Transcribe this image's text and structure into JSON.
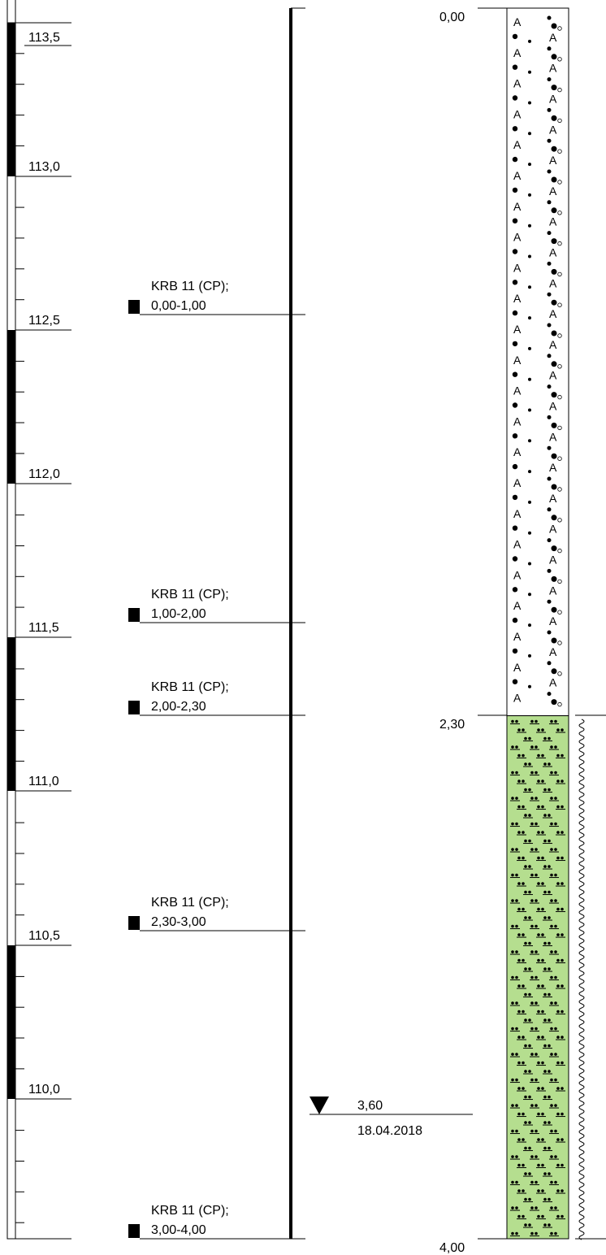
{
  "elevation_scale": {
    "labels": [
      "113,5",
      "113,0",
      "112,5",
      "112,0",
      "111,5",
      "111,0",
      "110,5",
      "110,0"
    ]
  },
  "samples": [
    {
      "name": "KRB 11 (CP);",
      "range": "0,00-1,00"
    },
    {
      "name": "KRB 11 (CP);",
      "range": "1,00-2,00"
    },
    {
      "name": "KRB 11 (CP);",
      "range": "2,00-2,30"
    },
    {
      "name": "KRB 11 (CP);",
      "range": "2,30-3,00"
    },
    {
      "name": "KRB 11 (CP);",
      "range": "3,00-4,00"
    }
  ],
  "groundwater": {
    "depth": "3,60",
    "date": "18.04.2018"
  },
  "layers": [
    {
      "top_label": "0,00",
      "top_m": 0.0,
      "bottom_m": 2.3,
      "fill": "#ffffff"
    },
    {
      "top_label": "2,30",
      "top_m": 2.3,
      "bottom_m": 4.0,
      "fill": "#b5de8f"
    }
  ],
  "final_depth": "4,00",
  "colors": {
    "line": "#000000",
    "clay_fill": "#b5de8f"
  }
}
